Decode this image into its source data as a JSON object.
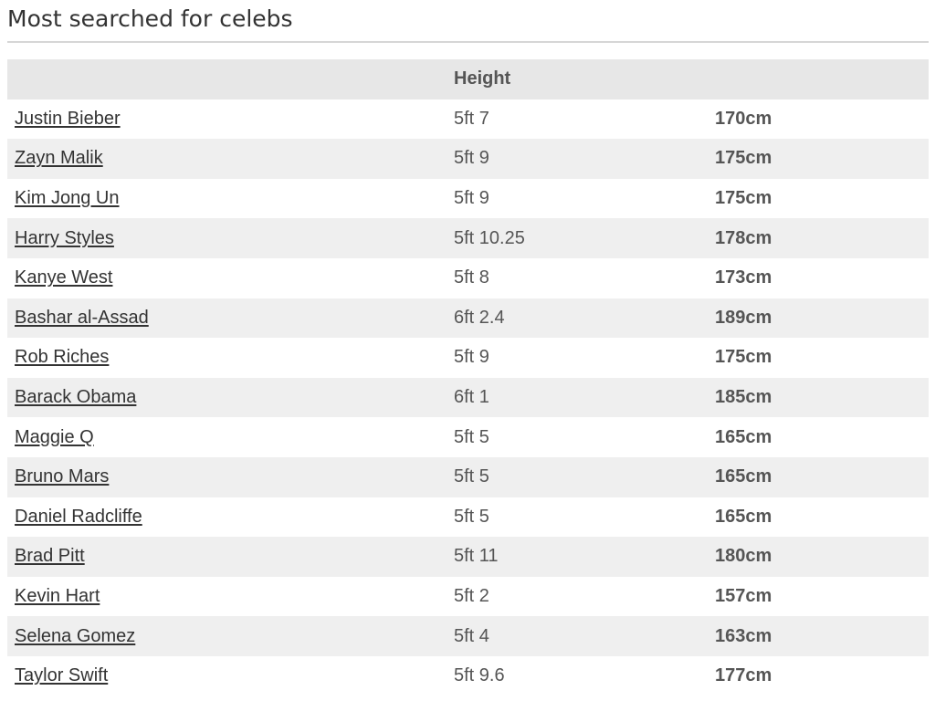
{
  "page": {
    "title": "Most searched for celebs"
  },
  "table": {
    "columns": [
      "",
      "Height",
      ""
    ],
    "rows": [
      {
        "name": "Justin Bieber",
        "imperial": "5ft 7",
        "metric": "170cm"
      },
      {
        "name": "Zayn Malik",
        "imperial": "5ft 9",
        "metric": "175cm"
      },
      {
        "name": "Kim Jong Un",
        "imperial": "5ft 9",
        "metric": "175cm"
      },
      {
        "name": "Harry Styles",
        "imperial": "5ft 10.25",
        "metric": "178cm"
      },
      {
        "name": "Kanye West",
        "imperial": "5ft 8",
        "metric": "173cm"
      },
      {
        "name": "Bashar al-Assad",
        "imperial": "6ft 2.4",
        "metric": "189cm"
      },
      {
        "name": "Rob Riches",
        "imperial": "5ft 9",
        "metric": "175cm"
      },
      {
        "name": "Barack Obama",
        "imperial": "6ft 1",
        "metric": "185cm"
      },
      {
        "name": "Maggie Q",
        "imperial": "5ft 5",
        "metric": "165cm"
      },
      {
        "name": "Bruno Mars",
        "imperial": "5ft 5",
        "metric": "165cm"
      },
      {
        "name": "Daniel Radcliffe",
        "imperial": "5ft 5",
        "metric": "165cm"
      },
      {
        "name": "Brad Pitt",
        "imperial": "5ft 11",
        "metric": "180cm"
      },
      {
        "name": "Kevin Hart",
        "imperial": "5ft 2",
        "metric": "157cm"
      },
      {
        "name": "Selena Gomez",
        "imperial": "5ft 4",
        "metric": "163cm"
      },
      {
        "name": "Taylor Swift",
        "imperial": "5ft 9.6",
        "metric": "177cm"
      }
    ]
  }
}
